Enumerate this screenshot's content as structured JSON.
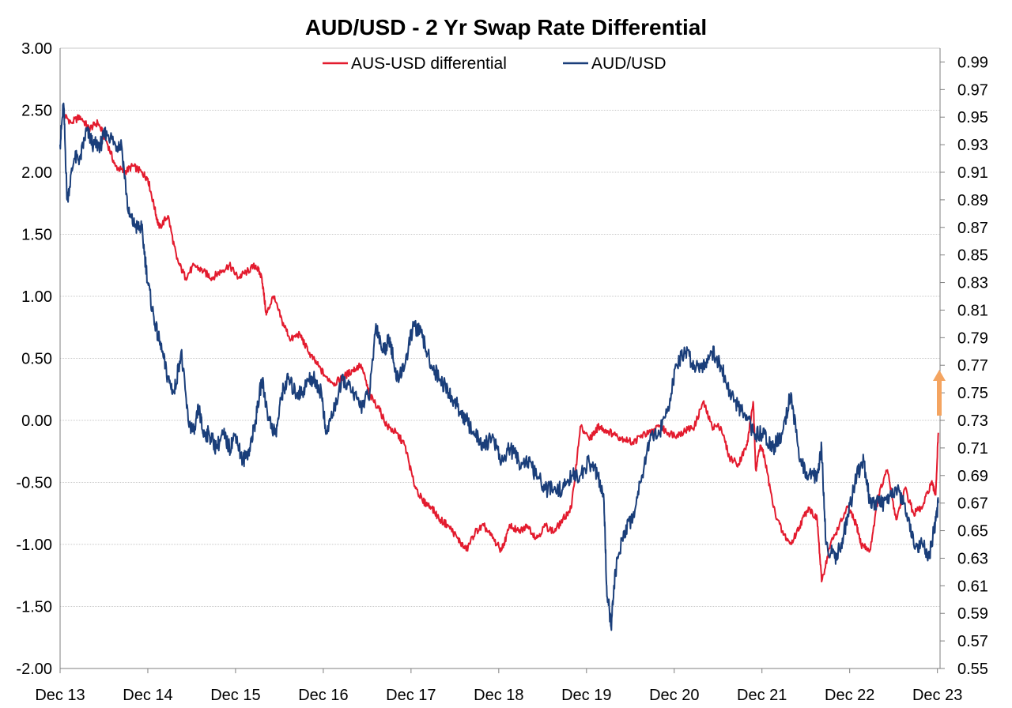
{
  "chart_data": {
    "type": "line",
    "title": "AUD/USD - 2 Yr Swap Rate Differential",
    "y_left": {
      "ylim": [
        -2.0,
        3.0
      ],
      "ticks": [
        "3.00",
        "2.50",
        "2.00",
        "1.50",
        "1.00",
        "0.50",
        "0.00",
        "-0.50",
        "-1.00",
        "-1.50",
        "-2.00"
      ],
      "tick_values": [
        3.0,
        2.5,
        2.0,
        1.5,
        1.0,
        0.5,
        0.0,
        -0.5,
        -1.0,
        -1.5,
        -2.0
      ]
    },
    "y_right": {
      "ylim": [
        0.55,
        1.0
      ],
      "ticks": [
        "0.99",
        "0.97",
        "0.95",
        "0.93",
        "0.91",
        "0.89",
        "0.87",
        "0.85",
        "0.83",
        "0.81",
        "0.79",
        "0.77",
        "0.75",
        "0.73",
        "0.71",
        "0.69",
        "0.67",
        "0.65",
        "0.63",
        "0.61",
        "0.59",
        "0.57",
        "0.55"
      ],
      "tick_values": [
        0.99,
        0.97,
        0.95,
        0.93,
        0.91,
        0.89,
        0.87,
        0.85,
        0.83,
        0.81,
        0.79,
        0.77,
        0.75,
        0.73,
        0.71,
        0.69,
        0.67,
        0.65,
        0.63,
        0.61,
        0.59,
        0.57,
        0.55
      ]
    },
    "x_axis": {
      "xlim": [
        2013.92,
        2023.95
      ],
      "tick_labels": [
        "Dec 13",
        "Dec 14",
        "Dec 15",
        "Dec 16",
        "Dec 17",
        "Dec 18",
        "Dec 19",
        "Dec 20",
        "Dec 21",
        "Dec 22",
        "Dec 23"
      ],
      "tick_values": [
        2013.92,
        2014.92,
        2015.92,
        2016.92,
        2017.92,
        2018.92,
        2019.92,
        2020.92,
        2021.92,
        2022.92,
        2023.92
      ]
    },
    "grid": "horizontal",
    "legend_position": "top-center",
    "series": [
      {
        "name": "AUS-USD differential",
        "axis": "left",
        "color": "#e31b2e",
        "x": [
          2013.95,
          2014.05,
          2014.15,
          2014.25,
          2014.35,
          2014.45,
          2014.55,
          2014.65,
          2014.75,
          2014.85,
          2014.92,
          2015.0,
          2015.05,
          2015.15,
          2015.25,
          2015.35,
          2015.45,
          2015.55,
          2015.65,
          2015.75,
          2015.85,
          2015.95,
          2016.05,
          2016.15,
          2016.22,
          2016.27,
          2016.35,
          2016.45,
          2016.55,
          2016.65,
          2016.75,
          2016.85,
          2016.95,
          2017.05,
          2017.15,
          2017.25,
          2017.35,
          2017.45,
          2017.55,
          2017.65,
          2017.75,
          2017.85,
          2017.95,
          2018.05,
          2018.15,
          2018.25,
          2018.35,
          2018.45,
          2018.55,
          2018.65,
          2018.75,
          2018.85,
          2018.95,
          2019.05,
          2019.15,
          2019.25,
          2019.35,
          2019.45,
          2019.55,
          2019.65,
          2019.75,
          2019.85,
          2019.95,
          2020.02,
          2020.05,
          2020.15,
          2020.25,
          2020.35,
          2020.45,
          2020.55,
          2020.65,
          2020.75,
          2020.85,
          2020.95,
          2021.05,
          2021.15,
          2021.25,
          2021.35,
          2021.45,
          2021.55,
          2021.65,
          2021.75,
          2021.82,
          2021.85,
          2021.9,
          2021.95,
          2022.05,
          2022.15,
          2022.25,
          2022.35,
          2022.45,
          2022.55,
          2022.6,
          2022.7,
          2022.8,
          2022.9,
          2023.0,
          2023.05,
          2023.15,
          2023.25,
          2023.35,
          2023.45,
          2023.55,
          2023.65,
          2023.75,
          2023.85,
          2023.9,
          2023.93
        ],
        "y": [
          2.47,
          2.4,
          2.45,
          2.35,
          2.4,
          2.25,
          2.05,
          2.0,
          2.05,
          2.0,
          1.95,
          1.7,
          1.55,
          1.65,
          1.3,
          1.15,
          1.25,
          1.2,
          1.15,
          1.2,
          1.25,
          1.15,
          1.2,
          1.25,
          1.15,
          0.85,
          1.0,
          0.8,
          0.65,
          0.7,
          0.55,
          0.45,
          0.35,
          0.3,
          0.35,
          0.4,
          0.45,
          0.2,
          0.1,
          -0.05,
          -0.1,
          -0.2,
          -0.5,
          -0.65,
          -0.7,
          -0.8,
          -0.85,
          -0.95,
          -1.05,
          -0.9,
          -0.85,
          -0.95,
          -1.05,
          -0.85,
          -0.9,
          -0.85,
          -0.95,
          -0.85,
          -0.9,
          -0.8,
          -0.7,
          -0.05,
          -0.15,
          -0.1,
          -0.05,
          -0.08,
          -0.12,
          -0.15,
          -0.18,
          -0.12,
          -0.1,
          -0.05,
          -0.1,
          -0.12,
          -0.08,
          -0.05,
          0.15,
          -0.05,
          -0.05,
          -0.3,
          -0.35,
          -0.2,
          0.15,
          -0.4,
          -0.2,
          -0.3,
          -0.7,
          -0.9,
          -1.0,
          -0.85,
          -0.7,
          -0.8,
          -1.3,
          -1.0,
          -0.85,
          -0.7,
          -0.85,
          -1.0,
          -1.05,
          -0.6,
          -0.4,
          -0.8,
          -0.55,
          -0.75,
          -0.7,
          -0.5,
          -0.6,
          -0.1
        ]
      },
      {
        "name": "AUD/USD",
        "axis": "right",
        "color": "#1a3e7a",
        "x": [
          2013.92,
          2013.96,
          2014.0,
          2014.08,
          2014.15,
          2014.22,
          2014.3,
          2014.38,
          2014.45,
          2014.55,
          2014.62,
          2014.7,
          2014.78,
          2014.85,
          2014.92,
          2015.0,
          2015.08,
          2015.15,
          2015.22,
          2015.3,
          2015.38,
          2015.45,
          2015.5,
          2015.55,
          2015.62,
          2015.7,
          2015.78,
          2015.85,
          2015.92,
          2016.0,
          2016.08,
          2016.15,
          2016.22,
          2016.3,
          2016.38,
          2016.45,
          2016.52,
          2016.6,
          2016.68,
          2016.75,
          2016.82,
          2016.9,
          2016.95,
          2017.05,
          2017.15,
          2017.25,
          2017.35,
          2017.45,
          2017.52,
          2017.6,
          2017.68,
          2017.75,
          2017.85,
          2017.95,
          2018.05,
          2018.15,
          2018.25,
          2018.35,
          2018.45,
          2018.55,
          2018.65,
          2018.75,
          2018.85,
          2018.95,
          2019.05,
          2019.15,
          2019.25,
          2019.35,
          2019.45,
          2019.55,
          2019.65,
          2019.75,
          2019.85,
          2019.95,
          2020.05,
          2020.12,
          2020.15,
          2020.2,
          2020.25,
          2020.35,
          2020.45,
          2020.55,
          2020.65,
          2020.75,
          2020.85,
          2020.95,
          2021.05,
          2021.15,
          2021.25,
          2021.35,
          2021.45,
          2021.55,
          2021.65,
          2021.75,
          2021.85,
          2021.95,
          2022.05,
          2022.15,
          2022.25,
          2022.35,
          2022.45,
          2022.55,
          2022.6,
          2022.65,
          2022.75,
          2022.82,
          2022.9,
          2023.0,
          2023.08,
          2023.15,
          2023.25,
          2023.35,
          2023.45,
          2023.55,
          2023.65,
          2023.75,
          2023.82,
          2023.88,
          2023.93
        ],
        "y": [
          0.93,
          0.96,
          0.89,
          0.92,
          0.92,
          0.94,
          0.93,
          0.93,
          0.94,
          0.93,
          0.93,
          0.88,
          0.87,
          0.87,
          0.83,
          0.8,
          0.78,
          0.76,
          0.75,
          0.78,
          0.73,
          0.72,
          0.74,
          0.72,
          0.72,
          0.71,
          0.72,
          0.71,
          0.72,
          0.7,
          0.71,
          0.73,
          0.76,
          0.73,
          0.72,
          0.75,
          0.76,
          0.75,
          0.75,
          0.76,
          0.76,
          0.75,
          0.72,
          0.74,
          0.76,
          0.75,
          0.74,
          0.75,
          0.8,
          0.78,
          0.79,
          0.76,
          0.77,
          0.8,
          0.79,
          0.77,
          0.76,
          0.75,
          0.74,
          0.73,
          0.72,
          0.71,
          0.72,
          0.7,
          0.71,
          0.7,
          0.7,
          0.69,
          0.68,
          0.68,
          0.68,
          0.69,
          0.69,
          0.7,
          0.69,
          0.67,
          0.61,
          0.58,
          0.62,
          0.65,
          0.66,
          0.69,
          0.72,
          0.72,
          0.74,
          0.77,
          0.78,
          0.77,
          0.77,
          0.78,
          0.77,
          0.75,
          0.74,
          0.73,
          0.72,
          0.72,
          0.71,
          0.72,
          0.75,
          0.7,
          0.69,
          0.69,
          0.71,
          0.64,
          0.63,
          0.64,
          0.66,
          0.69,
          0.7,
          0.67,
          0.67,
          0.67,
          0.68,
          0.67,
          0.64,
          0.64,
          0.63,
          0.65,
          0.67
        ]
      }
    ],
    "annotations": [
      {
        "type": "arrow",
        "color": "#f4a460",
        "direction": "up",
        "description": "orange upward arrow near Dec 23"
      }
    ]
  }
}
